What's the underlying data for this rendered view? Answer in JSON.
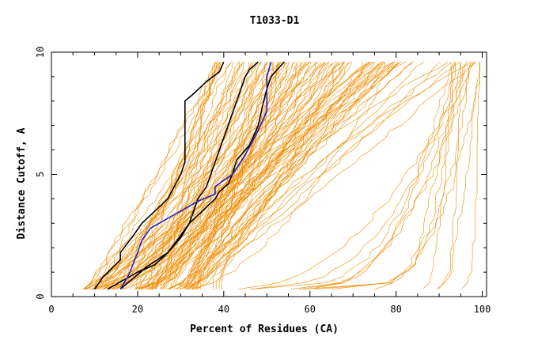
{
  "chart_data": {
    "type": "line",
    "title": "T1033-D1",
    "xlabel": "Percent of Residues (CA)",
    "ylabel": "Distance Cutoff, A",
    "xlim": [
      0,
      101
    ],
    "ylim": [
      0,
      10
    ],
    "xticks": [
      0,
      20,
      40,
      60,
      80,
      100
    ],
    "yticks": [
      0,
      5,
      10
    ],
    "grid": false,
    "legend": "none",
    "colors": {
      "models": "#f08c00",
      "highlight_black": "#000000",
      "highlight_blue": "#2020c8"
    },
    "series": [
      {
        "color": "#000000",
        "x": [
          10,
          12,
          16,
          16,
          19,
          21,
          24,
          27,
          30,
          31,
          31,
          31,
          31,
          33,
          36,
          39,
          40
        ],
        "y": [
          0.3,
          0.8,
          1.5,
          1.8,
          2.5,
          3.0,
          3.5,
          4.0,
          5.0,
          5.5,
          6.0,
          7.0,
          8.0,
          8.3,
          8.8,
          9.2,
          9.6
        ]
      },
      {
        "color": "#000000",
        "x": [
          13,
          20,
          24,
          27,
          30,
          32,
          35,
          38,
          39,
          41,
          42,
          43,
          46,
          48,
          49,
          50,
          51,
          54
        ],
        "y": [
          0.3,
          1.0,
          1.3,
          1.8,
          2.4,
          3.0,
          3.5,
          4.0,
          4.3,
          4.6,
          5.0,
          5.6,
          6.2,
          7.0,
          7.8,
          8.5,
          9.0,
          9.6
        ]
      },
      {
        "color": "#000000",
        "x": [
          16,
          22,
          27,
          30,
          32,
          33,
          34,
          36,
          37,
          38,
          39,
          40,
          41,
          42,
          43,
          44,
          45,
          46,
          48
        ],
        "y": [
          0.3,
          1.2,
          1.8,
          2.5,
          3.0,
          3.5,
          4.0,
          4.5,
          5.0,
          5.5,
          6.0,
          6.5,
          7.0,
          7.5,
          8.0,
          8.5,
          9.0,
          9.3,
          9.6
        ]
      },
      {
        "color": "#2020c8",
        "x": [
          16,
          18,
          20,
          21,
          23,
          26,
          30,
          34,
          38,
          38,
          42,
          45,
          48,
          50,
          50,
          50,
          51
        ],
        "y": [
          0.3,
          0.9,
          1.8,
          2.3,
          2.8,
          3.1,
          3.5,
          3.9,
          4.2,
          4.5,
          5.0,
          5.8,
          6.8,
          7.6,
          8.3,
          9.0,
          9.6
        ]
      }
    ]
  }
}
